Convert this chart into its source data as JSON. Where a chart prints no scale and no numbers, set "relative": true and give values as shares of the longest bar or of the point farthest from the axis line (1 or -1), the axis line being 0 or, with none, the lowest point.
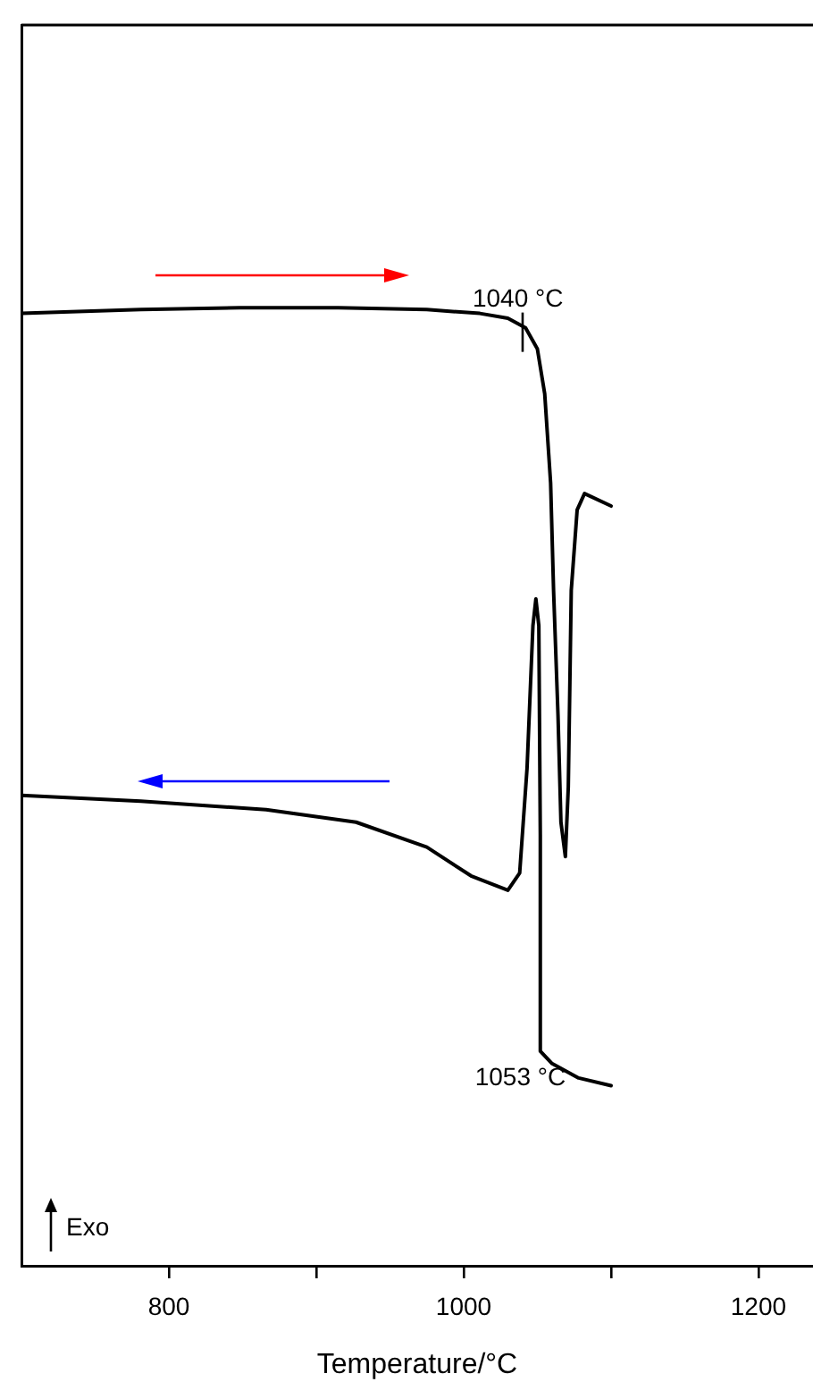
{
  "chart_data": {
    "type": "line",
    "xlabel": "Temperature/°C",
    "relative": true,
    "legend": false,
    "grid": false,
    "tick_labels": "x",
    "marker": "none",
    "line_style": "solid",
    "xlim": [
      700,
      1237
    ],
    "xticks": [
      800,
      {
        "value": 900,
        "label": null
      },
      1000,
      {
        "value": 1100,
        "label": null
      },
      1200
    ],
    "series": [
      {
        "color": "#000000",
        "x": [
          700,
          781,
          848,
          915,
          975,
          1011,
          1030,
          1042,
          1050,
          1055,
          1059,
          1061,
          1064,
          1066,
          1069,
          1071,
          1073,
          1077,
          1082,
          1100
        ],
        "values": [
          0.994,
          0.998,
          1.0,
          1.0,
          0.998,
          0.994,
          0.989,
          0.979,
          0.957,
          0.91,
          0.817,
          0.705,
          0.575,
          0.463,
          0.427,
          0.5,
          0.705,
          0.789,
          0.806,
          0.793
        ]
      },
      {
        "color": "#000000",
        "x": [
          700,
          781,
          866,
          927,
          975,
          1005,
          1030,
          1038,
          1043,
          1047,
          1049,
          1051,
          1052,
          1052,
          1060,
          1078,
          1100
        ],
        "values": [
          0.491,
          0.485,
          0.476,
          0.463,
          0.437,
          0.407,
          0.392,
          0.41,
          0.519,
          0.668,
          0.696,
          0.668,
          0.45,
          0.224,
          0.211,
          0.196,
          0.188
        ]
      }
    ],
    "annotations": [
      {
        "text": "1040 °C",
        "x": 1040,
        "y": 0.98
      },
      {
        "text": "1053 °C",
        "x": 1053,
        "y": 0.224
      },
      "Exo"
    ]
  }
}
